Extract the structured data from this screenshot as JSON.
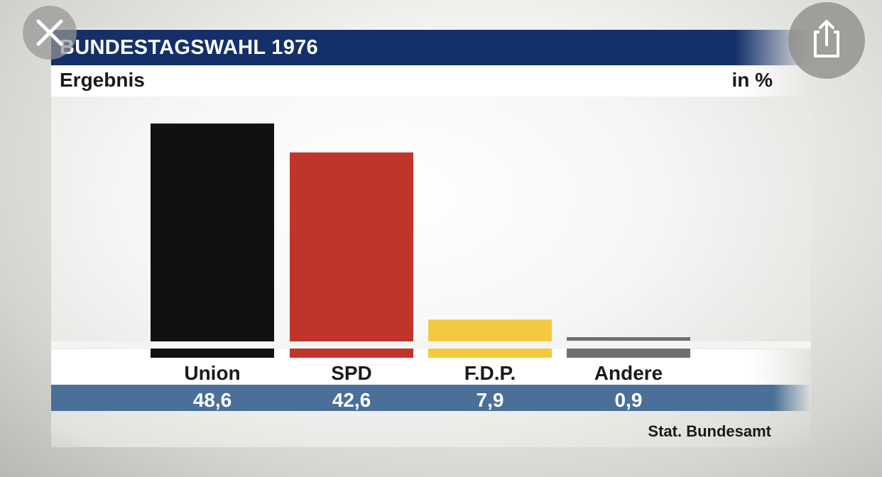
{
  "chart_data": {
    "type": "bar",
    "title": "BUNDESTAGSWAHL 1976",
    "subtitle": "Ergebnis",
    "unit": "in %",
    "categories": [
      "Union",
      "SPD",
      "F.D.P.",
      "Andere"
    ],
    "values": [
      48.6,
      42.6,
      7.9,
      0.9
    ],
    "value_labels": [
      "48,6",
      "42,6",
      "7,9",
      "0,9"
    ],
    "colors": [
      "#111111",
      "#c1342b",
      "#f4c93f",
      "#6f6f6f"
    ],
    "source": "Stat. Bundesamt",
    "grid": false,
    "legend": "none"
  },
  "overlay": {
    "close_icon": "close-icon",
    "share_icon": "share-icon"
  }
}
